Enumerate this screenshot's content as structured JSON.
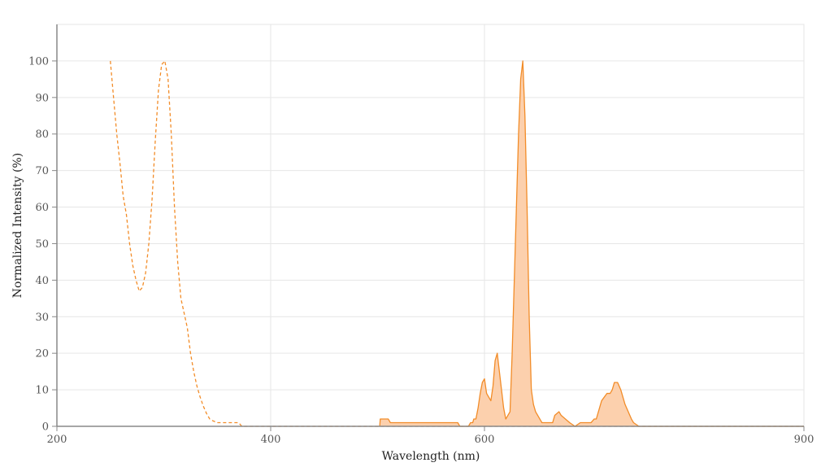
{
  "chart_data": {
    "type": "area",
    "xlabel": "Wavelength (nm)",
    "ylabel": "Normalized Intensity (%)",
    "xlim": [
      200,
      900
    ],
    "ylim": [
      0,
      110
    ],
    "x_ticks": [
      200,
      400,
      600,
      900
    ],
    "x_tick_labels": [
      "200",
      "400",
      "600",
      "900"
    ],
    "y_ticks": [
      0,
      10,
      20,
      30,
      40,
      50,
      60,
      70,
      80,
      90,
      100
    ],
    "y_tick_labels": [
      "0",
      "10",
      "20",
      "30",
      "40",
      "50",
      "60",
      "70",
      "80",
      "90",
      "100"
    ],
    "grid": true,
    "legend": "none",
    "series": [
      {
        "style": "dashed-line",
        "color": "#f28c28",
        "x": [
          250,
          253,
          256,
          259,
          262,
          265,
          268,
          271,
          274,
          277,
          280,
          283,
          286,
          289,
          292,
          295,
          298,
          301,
          304,
          307,
          310,
          313,
          316,
          319,
          322,
          325,
          328,
          331,
          334,
          337,
          340,
          343,
          346,
          350,
          355,
          360,
          365,
          370,
          373,
          378,
          390,
          420,
          470,
          520,
          570,
          620,
          670,
          720,
          770,
          820,
          870,
          900
        ],
        "y": [
          100,
          90,
          80,
          72,
          63,
          58,
          50,
          44,
          40,
          37,
          38,
          42,
          50,
          62,
          78,
          92,
          99,
          100,
          95,
          80,
          60,
          45,
          35,
          31,
          27,
          20,
          15,
          11,
          8,
          5.5,
          3.5,
          2,
          1.5,
          1,
          1,
          1,
          1,
          1,
          0,
          0,
          0,
          0,
          0,
          0,
          0,
          0,
          0,
          0,
          0,
          0,
          0,
          0
        ]
      },
      {
        "style": "filled-area",
        "color": "#f28c28",
        "fill": "#fcd0ad",
        "x": [
          502,
          502.5,
          508,
          510,
          512,
          520,
          540,
          560,
          575,
          577,
          580,
          585,
          587,
          589,
          590,
          592,
          594,
          596,
          598,
          600,
          602,
          604,
          606,
          608,
          610,
          612,
          614,
          616,
          618,
          620,
          622,
          624,
          626,
          628,
          630,
          632,
          634,
          636,
          638,
          640,
          642,
          644,
          646,
          648,
          650,
          652,
          654,
          656,
          658,
          660,
          664,
          666,
          670,
          672,
          680,
          685,
          690,
          695,
          700,
          703,
          705,
          707,
          710,
          715,
          718,
          720,
          722,
          725,
          728,
          730,
          732,
          735,
          738,
          740,
          745,
          750,
          760,
          800,
          850,
          900
        ],
        "y": [
          0,
          2,
          2,
          2,
          1,
          1,
          1,
          1,
          1,
          0,
          0,
          0,
          1,
          1,
          2,
          2,
          5,
          9,
          12,
          13,
          9,
          8,
          7,
          11,
          18,
          20,
          15,
          10,
          5,
          2,
          3,
          4,
          20,
          40,
          60,
          80,
          95,
          100,
          85,
          60,
          30,
          10,
          6,
          4,
          3,
          2,
          1,
          1,
          1,
          1,
          1,
          3,
          4,
          3,
          1,
          0,
          1,
          1,
          1,
          2,
          2,
          4,
          7,
          9,
          9,
          10,
          12,
          12,
          10,
          8,
          6,
          4,
          2,
          1,
          0,
          0,
          0,
          0,
          0,
          0
        ]
      }
    ]
  }
}
